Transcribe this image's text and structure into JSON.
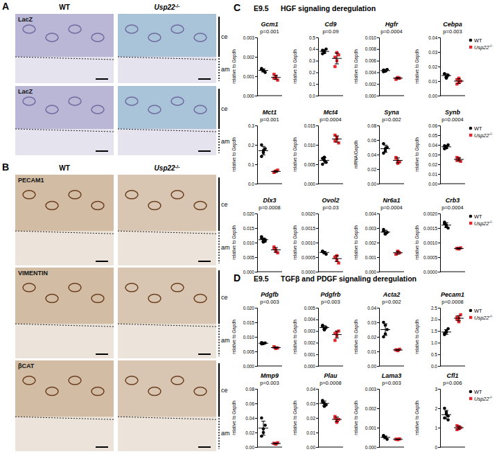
{
  "figure": {
    "panel_a": {
      "label": "A",
      "columns": [
        "WT",
        "Usp22-/-"
      ],
      "rows": [
        "LacZ",
        "LacZ"
      ],
      "side_labels": [
        "ce",
        "am"
      ]
    },
    "panel_b": {
      "label": "B",
      "columns": [
        "WT",
        "Usp22-/-"
      ],
      "rows": [
        "PECAM1",
        "VIMENTIN",
        "βCAT"
      ],
      "side_labels": [
        "ce",
        "am"
      ]
    },
    "panel_c": {
      "label": "C",
      "stage": "E9.5",
      "title": "HGF signaling deregulation"
    },
    "panel_d": {
      "label": "D",
      "stage": "E9.5",
      "title": "TGFβ and PDGF signaling deregulation"
    }
  },
  "chart_data": [
    {
      "type": "scatter",
      "title": "Gcm1",
      "annotation": "p=0.001",
      "ylabel": "relative to Gapdh",
      "tick_labels": "y",
      "ylim": [
        0,
        0.003
      ],
      "yticks": [
        {
          "value": 0,
          "label": "0.000"
        },
        0.001,
        0.002,
        0.003
      ],
      "series": [
        {
          "color": "#000000",
          "marker": "circle",
          "values": [
            0.00135,
            0.0013,
            0.0012,
            0.0014,
            0.00128
          ],
          "mean": 0.0013,
          "sd": 8e-05
        },
        {
          "color": "#e8232a",
          "marker": "square",
          "values": [
            0.0009,
            0.001,
            0.0008,
            0.0011,
            0.00092
          ],
          "mean": 0.00094,
          "sd": 0.00011
        }
      ]
    },
    {
      "type": "scatter",
      "title": "Cd9",
      "annotation": "p=0.09",
      "ylabel": "relative to Gapdh",
      "tick_labels": "y",
      "ylim": [
        0,
        0.5
      ],
      "yticks": [
        {
          "value": 0,
          "label": "0.0"
        },
        0.1,
        0.2,
        0.3,
        0.4,
        0.5
      ],
      "series": [
        {
          "color": "#000000",
          "marker": "circle",
          "values": [
            0.39,
            0.37,
            0.4,
            0.36,
            0.38
          ],
          "mean": 0.38,
          "sd": 0.016
        },
        {
          "color": "#e8232a",
          "marker": "square",
          "values": [
            0.33,
            0.3,
            0.35,
            0.25,
            0.37
          ],
          "mean": 0.32,
          "sd": 0.047
        }
      ]
    },
    {
      "type": "scatter",
      "title": "Hgfr",
      "annotation": "p=0.0004",
      "ylabel": "relative to Gapdh",
      "tick_labels": "y",
      "ylim": [
        0,
        0.01
      ],
      "yticks": [
        {
          "value": 0,
          "label": "0.000"
        },
        0.002,
        0.004,
        0.006,
        0.008,
        {
          "value": 0.01,
          "label": "0.010"
        }
      ],
      "series": [
        {
          "color": "#000000",
          "marker": "circle",
          "values": [
            0.0044,
            0.0042,
            0.0045,
            0.0041,
            0.0043
          ],
          "mean": 0.0043,
          "sd": 0.00016
        },
        {
          "color": "#e8232a",
          "marker": "square",
          "values": [
            0.0029,
            0.0031,
            0.003,
            0.0028,
            0.0031
          ],
          "mean": 0.003,
          "sd": 0.00013
        }
      ]
    },
    {
      "type": "scatter",
      "title": "Cebpa",
      "annotation": "p=0.003",
      "ylabel": "relative to Gapdh",
      "tick_labels": "y",
      "legend": "right",
      "ylim": [
        0,
        0.04
      ],
      "yticks": [
        {
          "value": 0,
          "label": "0.00"
        },
        0.01,
        0.02,
        0.03,
        0.04
      ],
      "series": [
        {
          "name": "WT",
          "color": "#000000",
          "marker": "circle",
          "values": [
            0.015,
            0.013,
            0.014,
            0.015,
            0.012
          ],
          "mean": 0.0138,
          "sd": 0.0013
        },
        {
          "name": "Usp22-/-",
          "color": "#e8232a",
          "marker": "square",
          "values": [
            0.011,
            0.009,
            0.01,
            0.008,
            0.012
          ],
          "mean": 0.01,
          "sd": 0.0016
        }
      ]
    },
    {
      "type": "scatter",
      "title": "Mct1",
      "annotation": "p=0.001",
      "ylabel": "relative to Gapdh",
      "tick_labels": "y",
      "ylim": [
        0,
        0.3
      ],
      "yticks": [
        {
          "value": 0,
          "label": "0.0"
        },
        0.1,
        0.2,
        0.3
      ],
      "series": [
        {
          "color": "#000000",
          "marker": "circle",
          "values": [
            0.2,
            0.16,
            0.18,
            0.14,
            0.17
          ],
          "mean": 0.17,
          "sd": 0.022
        },
        {
          "color": "#e8232a",
          "marker": "square",
          "values": [
            0.06,
            0.065,
            0.07,
            0.058,
            0.064
          ],
          "mean": 0.063,
          "sd": 0.0046
        }
      ]
    },
    {
      "type": "scatter",
      "title": "Mct4",
      "annotation": "p=0.0004",
      "ylabel": "relative to Gapdh",
      "tick_labels": "y",
      "ylim": [
        0,
        0.015
      ],
      "yticks": [
        {
          "value": 0,
          "label": "0.000"
        },
        0.005,
        {
          "value": 0.01,
          "label": "0.010"
        },
        0.015
      ],
      "series": [
        {
          "color": "#000000",
          "marker": "circle",
          "values": [
            0.005,
            0.006,
            0.0055,
            0.0065,
            0.0068
          ],
          "mean": 0.006,
          "sd": 0.0007
        },
        {
          "color": "#e8232a",
          "marker": "square",
          "values": [
            0.011,
            0.012,
            0.0105,
            0.0125,
            0.0115
          ],
          "mean": 0.0115,
          "sd": 0.0008
        }
      ]
    },
    {
      "type": "scatter",
      "title": "Syna",
      "annotation": "p=0.002",
      "ylabel": "mRNA/Gapdh",
      "tick_labels": "y",
      "ylim": [
        0,
        0.08
      ],
      "yticks": [
        {
          "value": 0,
          "label": "0.00"
        },
        0.02,
        0.04,
        0.06,
        0.08
      ],
      "series": [
        {
          "color": "#000000",
          "marker": "circle",
          "values": [
            0.055,
            0.045,
            0.05,
            0.042,
            0.048
          ],
          "mean": 0.048,
          "sd": 0.005
        },
        {
          "color": "#e8232a",
          "marker": "square",
          "values": [
            0.035,
            0.028,
            0.03,
            0.036,
            0.031
          ],
          "mean": 0.032,
          "sd": 0.0034
        }
      ]
    },
    {
      "type": "scatter",
      "title": "Synb",
      "annotation": "p=0.0004",
      "ylabel": "relative to Gapdh",
      "tick_labels": "y",
      "legend": "right",
      "ylim": [
        0,
        0.06
      ],
      "yticks": [
        {
          "value": 0,
          "label": "0.00"
        },
        0.01,
        0.02,
        0.03,
        0.04,
        0.05,
        0.06
      ],
      "series": [
        {
          "name": "WT",
          "color": "#000000",
          "marker": "circle",
          "values": [
            0.039,
            0.037,
            0.04,
            0.036,
            0.038
          ],
          "mean": 0.038,
          "sd": 0.0016
        },
        {
          "name": "Usp22-/-",
          "color": "#e8232a",
          "marker": "square",
          "values": [
            0.024,
            0.026,
            0.023,
            0.027,
            0.025
          ],
          "mean": 0.025,
          "sd": 0.0016
        }
      ]
    },
    {
      "type": "scatter",
      "title": "Dlx3",
      "annotation": "p=0.0008",
      "ylabel": "relative to Gapdh",
      "tick_labels": "y",
      "ylim": [
        0,
        0.02
      ],
      "yticks": [
        {
          "value": 0,
          "label": "0.000"
        },
        0.005,
        {
          "value": 0.01,
          "label": "0.010"
        },
        0.015,
        {
          "value": 0.02,
          "label": "0.020"
        }
      ],
      "series": [
        {
          "color": "#000000",
          "marker": "circle",
          "values": [
            0.012,
            0.011,
            0.0105,
            0.0115,
            0.0102,
            0.011
          ],
          "mean": 0.011,
          "sd": 0.0006
        },
        {
          "color": "#e8232a",
          "marker": "square",
          "values": [
            0.008,
            0.007,
            0.0065,
            0.0085,
            0.0075
          ],
          "mean": 0.0075,
          "sd": 0.0008
        }
      ]
    },
    {
      "type": "scatter",
      "title": "Ovol2",
      "annotation": "p=0.03",
      "ylabel": "relative to Gapdh",
      "tick_labels": "y",
      "ylim": [
        0,
        0.002
      ],
      "yticks": [
        {
          "value": 0,
          "label": "0.0000"
        },
        0.0005,
        {
          "value": 0.001,
          "label": "0.0010"
        },
        0.0015,
        {
          "value": 0.002,
          "label": "0.0020"
        }
      ],
      "series": [
        {
          "color": "#000000",
          "marker": "circle",
          "values": [
            0.0007,
            0.00065,
            0.0006,
            0.0007,
            0.00066
          ],
          "mean": 0.00066,
          "sd": 4e-05
        },
        {
          "color": "#e8232a",
          "marker": "square",
          "values": [
            0.0005,
            0.0004,
            0.0003,
            0.0005,
            0.00055
          ],
          "mean": 0.00045,
          "sd": 0.0001
        }
      ]
    },
    {
      "type": "scatter",
      "title": "Nr6a1",
      "annotation": "p=0.0004",
      "ylabel": "relative to Gapdh",
      "tick_labels": "y",
      "ylim": [
        0,
        0.004
      ],
      "yticks": [
        {
          "value": 0,
          "label": "0.000"
        },
        0.001,
        0.002,
        0.003,
        0.004
      ],
      "series": [
        {
          "color": "#000000",
          "marker": "circle",
          "values": [
            0.0028,
            0.0026,
            0.0027,
            0.0029,
            0.0026
          ],
          "mean": 0.00272,
          "sd": 0.00013
        },
        {
          "color": "#e8232a",
          "marker": "square",
          "values": [
            0.0012,
            0.0014,
            0.0013,
            0.0012,
            0.0014
          ],
          "mean": 0.0013,
          "sd": 0.0001
        }
      ]
    },
    {
      "type": "scatter",
      "title": "Crb3",
      "annotation": "p=0.0004",
      "ylabel": "relative to Gapdh",
      "tick_labels": "y",
      "legend": "right",
      "ylim": [
        0,
        0.002
      ],
      "yticks": [
        {
          "value": 0,
          "label": "0.0000"
        },
        0.0005,
        {
          "value": 0.001,
          "label": "0.0010"
        },
        0.0015,
        {
          "value": 0.002,
          "label": "0.0020"
        }
      ],
      "series": [
        {
          "name": "WT",
          "color": "#000000",
          "marker": "circle",
          "values": [
            0.0017,
            0.0016,
            0.0015,
            0.00165,
            0.00155
          ],
          "mean": 0.0016,
          "sd": 8e-05
        },
        {
          "name": "Usp22-/-",
          "color": "#e8232a",
          "marker": "square",
          "values": [
            0.0008,
            0.00078,
            0.00082,
            0.0008,
            0.00079
          ],
          "mean": 0.0008,
          "sd": 2e-05
        }
      ]
    },
    {
      "type": "scatter",
      "title": "Pdgfb",
      "annotation": "p=0.003",
      "ylabel": "relative to Gapdh",
      "tick_labels": "y",
      "ylim": [
        0,
        0.02
      ],
      "yticks": [
        {
          "value": 0,
          "label": "0.000"
        },
        0.005,
        {
          "value": 0.01,
          "label": "0.010"
        },
        0.015,
        {
          "value": 0.02,
          "label": "0.020"
        }
      ],
      "series": [
        {
          "color": "#000000",
          "marker": "circle",
          "values": [
            0.008,
            0.0077,
            0.0079,
            0.0076,
            0.0078
          ],
          "mean": 0.0078,
          "sd": 0.00015
        },
        {
          "color": "#e8232a",
          "marker": "square",
          "values": [
            0.0065,
            0.006,
            0.0062,
            0.0066,
            0.0061
          ],
          "mean": 0.0063,
          "sd": 0.00026
        }
      ]
    },
    {
      "type": "scatter",
      "title": "Pdgfrb",
      "annotation": "p=0.003",
      "ylabel": "relative to Gapdh",
      "tick_labels": "y",
      "ylim": [
        0,
        0.005
      ],
      "yticks": [
        {
          "value": 0,
          "label": "0.000"
        },
        0.001,
        0.002,
        0.003,
        0.004,
        0.005
      ],
      "series": [
        {
          "color": "#000000",
          "marker": "circle",
          "values": [
            0.0034,
            0.0032,
            0.0033,
            0.0035,
            0.0031
          ],
          "mean": 0.0033,
          "sd": 0.00016
        },
        {
          "color": "#e8232a",
          "marker": "square",
          "values": [
            0.0028,
            0.0026,
            0.003,
            0.0022,
            0.0029
          ],
          "mean": 0.0027,
          "sd": 0.0003
        }
      ]
    },
    {
      "type": "scatter",
      "title": "Acta2",
      "annotation": "p=0.002",
      "ylabel": "relative to Gapdh",
      "tick_labels": "y",
      "ylim": [
        0,
        0.04
      ],
      "yticks": [
        {
          "value": 0,
          "label": "0.00"
        },
        0.01,
        0.02,
        0.03,
        0.04
      ],
      "series": [
        {
          "color": "#000000",
          "marker": "circle",
          "values": [
            0.03,
            0.022,
            0.025,
            0.02,
            0.028
          ],
          "mean": 0.025,
          "sd": 0.004
        },
        {
          "color": "#e8232a",
          "marker": "square",
          "values": [
            0.011,
            0.0105,
            0.0115,
            0.011,
            0.0108
          ],
          "mean": 0.011,
          "sd": 0.0004
        }
      ]
    },
    {
      "type": "scatter",
      "title": "Pecam1",
      "annotation": "p=0.0008",
      "ylabel": "relative to Gapdh",
      "tick_labels": "y",
      "legend": "right",
      "ylim": [
        0,
        2.5
      ],
      "yticks": [
        {
          "value": 0,
          "label": "0.0"
        },
        0.5,
        {
          "value": 1,
          "label": "1.0"
        },
        1.5,
        {
          "value": 2,
          "label": "2.0"
        },
        2.5
      ],
      "series": [
        {
          "name": "WT",
          "color": "#000000",
          "marker": "circle",
          "values": [
            1.4,
            1.5,
            1.6,
            1.35,
            1.45
          ],
          "mean": 1.46,
          "sd": 0.1
        },
        {
          "name": "Usp22-/-",
          "color": "#e8232a",
          "marker": "square",
          "values": [
            2.0,
            1.9,
            2.2,
            2.1,
            2.05
          ],
          "mean": 2.05,
          "sd": 0.11
        }
      ]
    },
    {
      "type": "scatter",
      "title": "Mmp9",
      "annotation": "p=0.003",
      "ylabel": "relative to Gapdh",
      "tick_labels": "y",
      "ylim": [
        0,
        0.08
      ],
      "yticks": [
        {
          "value": 0,
          "label": "0.00"
        },
        0.02,
        0.04,
        0.06,
        0.08
      ],
      "series": [
        {
          "color": "#000000",
          "marker": "circle",
          "values": [
            0.04,
            0.02,
            0.03,
            0.015,
            0.025
          ],
          "mean": 0.026,
          "sd": 0.0096
        },
        {
          "color": "#e8232a",
          "marker": "square",
          "values": [
            0.005,
            0.004,
            0.006,
            0.005,
            0.0045
          ],
          "mean": 0.0049,
          "sd": 0.0007
        }
      ]
    },
    {
      "type": "scatter",
      "title": "Plau",
      "annotation": "p=0.0008",
      "ylabel": "relative to Gapdh",
      "tick_labels": "y",
      "ylim": [
        0,
        0.04
      ],
      "yticks": [
        {
          "value": 0,
          "label": "0.00"
        },
        0.01,
        0.02,
        0.03,
        0.04
      ],
      "series": [
        {
          "color": "#000000",
          "marker": "circle",
          "values": [
            0.032,
            0.03,
            0.029,
            0.031,
            0.028
          ],
          "mean": 0.03,
          "sd": 0.0016
        },
        {
          "color": "#e8232a",
          "marker": "square",
          "values": [
            0.02,
            0.018,
            0.019,
            0.021,
            0.017
          ],
          "mean": 0.019,
          "sd": 0.0016
        }
      ]
    },
    {
      "type": "scatter",
      "title": "Lama3",
      "annotation": "p=0.003",
      "ylabel": "relative to Gapdh",
      "tick_labels": "y",
      "ylim": [
        0,
        0.003
      ],
      "yticks": [
        {
          "value": 0,
          "label": "0.000"
        },
        0.001,
        0.002,
        0.003
      ],
      "series": [
        {
          "color": "#000000",
          "marker": "circle",
          "values": [
            0.0006,
            0.0005,
            0.0004,
            0.00055,
            0.0005
          ],
          "mean": 0.0005,
          "sd": 7e-05
        },
        {
          "color": "#e8232a",
          "marker": "square",
          "values": [
            0.0004,
            0.00038,
            0.00042,
            0.0004,
            0.00041
          ],
          "mean": 0.0004,
          "sd": 1.5e-05
        }
      ]
    },
    {
      "type": "scatter",
      "title": "Cfl1",
      "annotation": "p=0.006",
      "ylabel": "relative to Gapdh",
      "tick_labels": "y",
      "legend": "right",
      "ylim": [
        0,
        3
      ],
      "yticks": [
        0,
        1,
        2,
        3
      ],
      "series": [
        {
          "name": "WT",
          "color": "#000000",
          "marker": "circle",
          "values": [
            2.0,
            1.8,
            1.6,
            1.5,
            1.7,
            1.4
          ],
          "mean": 1.67,
          "sd": 0.22
        },
        {
          "name": "Usp22-/-",
          "color": "#e8232a",
          "marker": "square",
          "values": [
            1.1,
            0.95,
            1.0,
            0.9,
            1.05
          ],
          "mean": 1.0,
          "sd": 0.08
        }
      ]
    }
  ]
}
